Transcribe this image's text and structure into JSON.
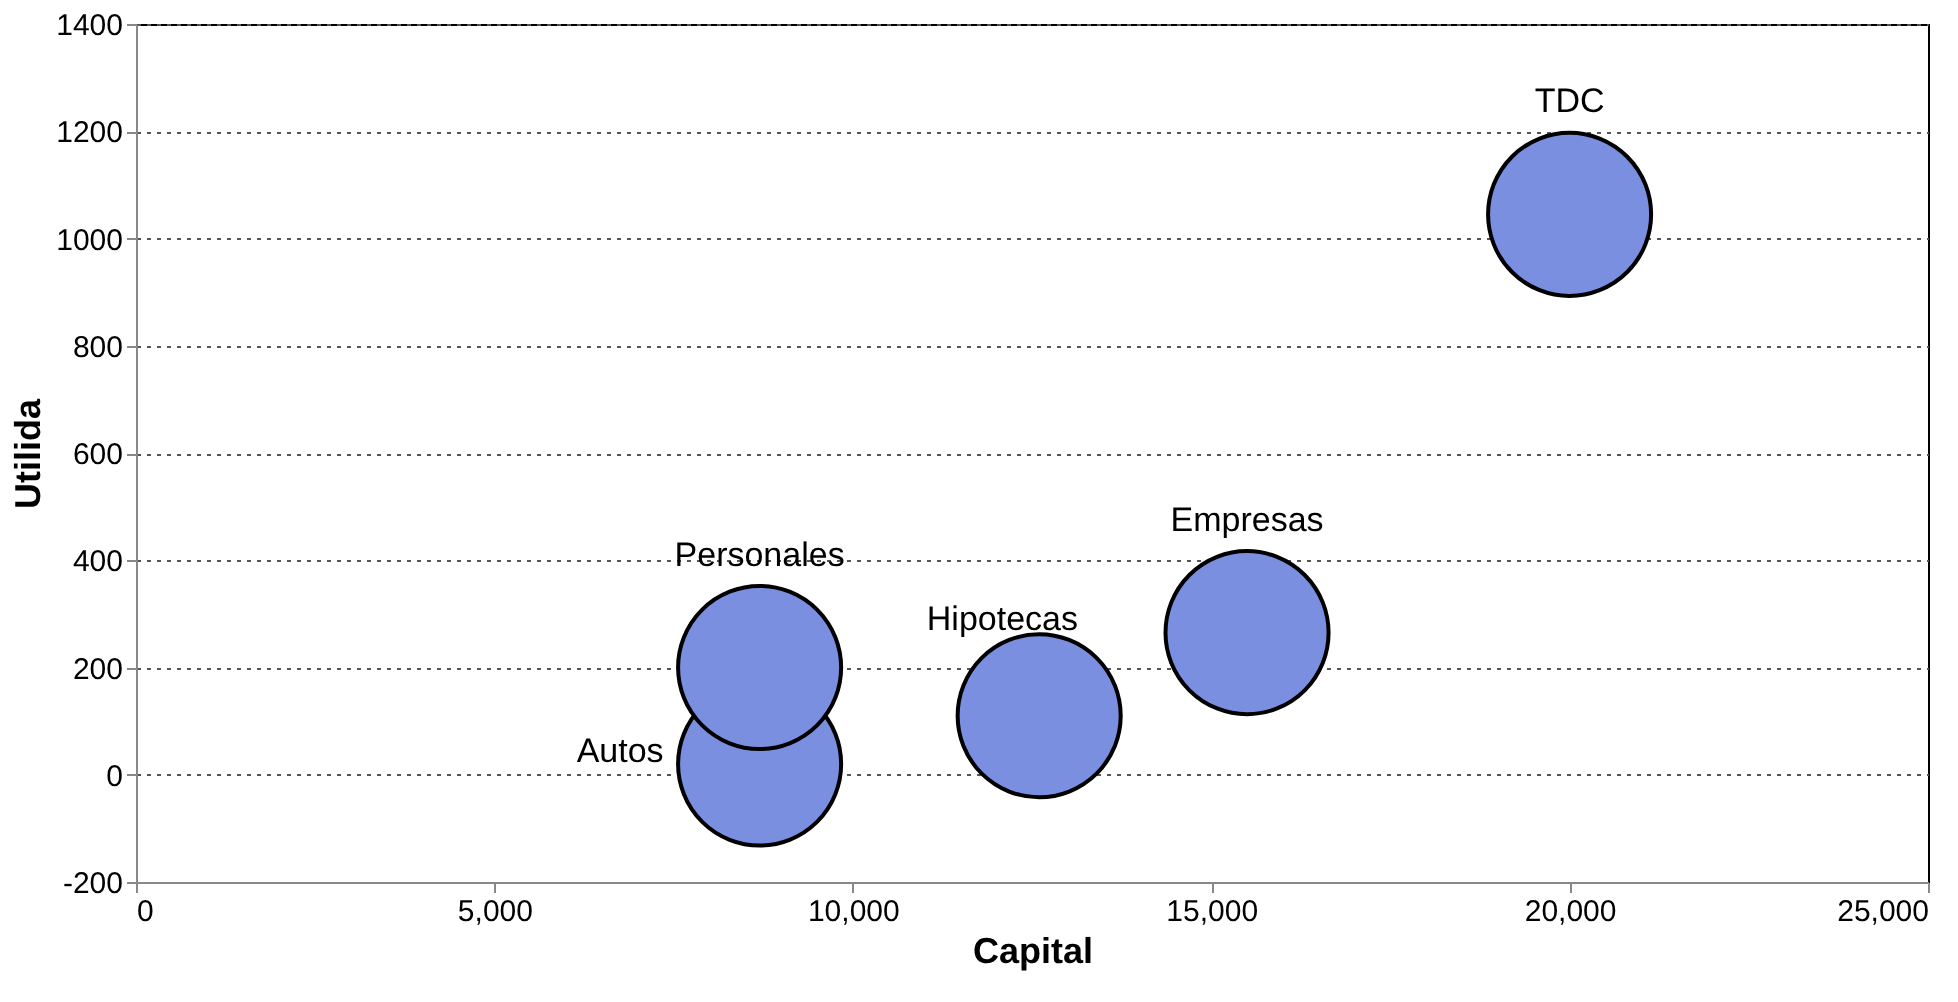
{
  "chart_data": {
    "type": "bubble",
    "xlabel": "Capital",
    "ylabel": "Utilida",
    "x": [
      8700,
      8700,
      12600,
      15500,
      20000
    ],
    "values": [
      20,
      200,
      110,
      265,
      1045
    ],
    "sizes": [
      1,
      1,
      1,
      1,
      1
    ],
    "color": "#7b8fe0",
    "annotations": [
      {
        "text": "Autos",
        "x": 8700,
        "y": 20
      },
      {
        "text": "Personales",
        "x": 8700,
        "y": 200
      },
      {
        "text": "Hipotecas",
        "x": 12600,
        "y": 110
      },
      {
        "text": "Empresas",
        "x": 15500,
        "y": 265
      },
      {
        "text": "TDC",
        "x": 20000,
        "y": 1045
      }
    ],
    "xlim": [
      0,
      25000
    ],
    "xticks": [
      {
        "value": 0,
        "label": "0"
      },
      {
        "value": 5000,
        "label": "5,000"
      },
      {
        "value": 10000,
        "label": "10,000"
      },
      {
        "value": 15000,
        "label": "15,000"
      },
      {
        "value": 20000,
        "label": "20,000"
      },
      {
        "value": 25000,
        "label": "25,000"
      }
    ],
    "ylim": [
      -200,
      1400
    ],
    "yticks": [
      -200,
      0,
      200,
      400,
      600,
      800,
      1000,
      1200,
      1400
    ],
    "grid": "y"
  }
}
